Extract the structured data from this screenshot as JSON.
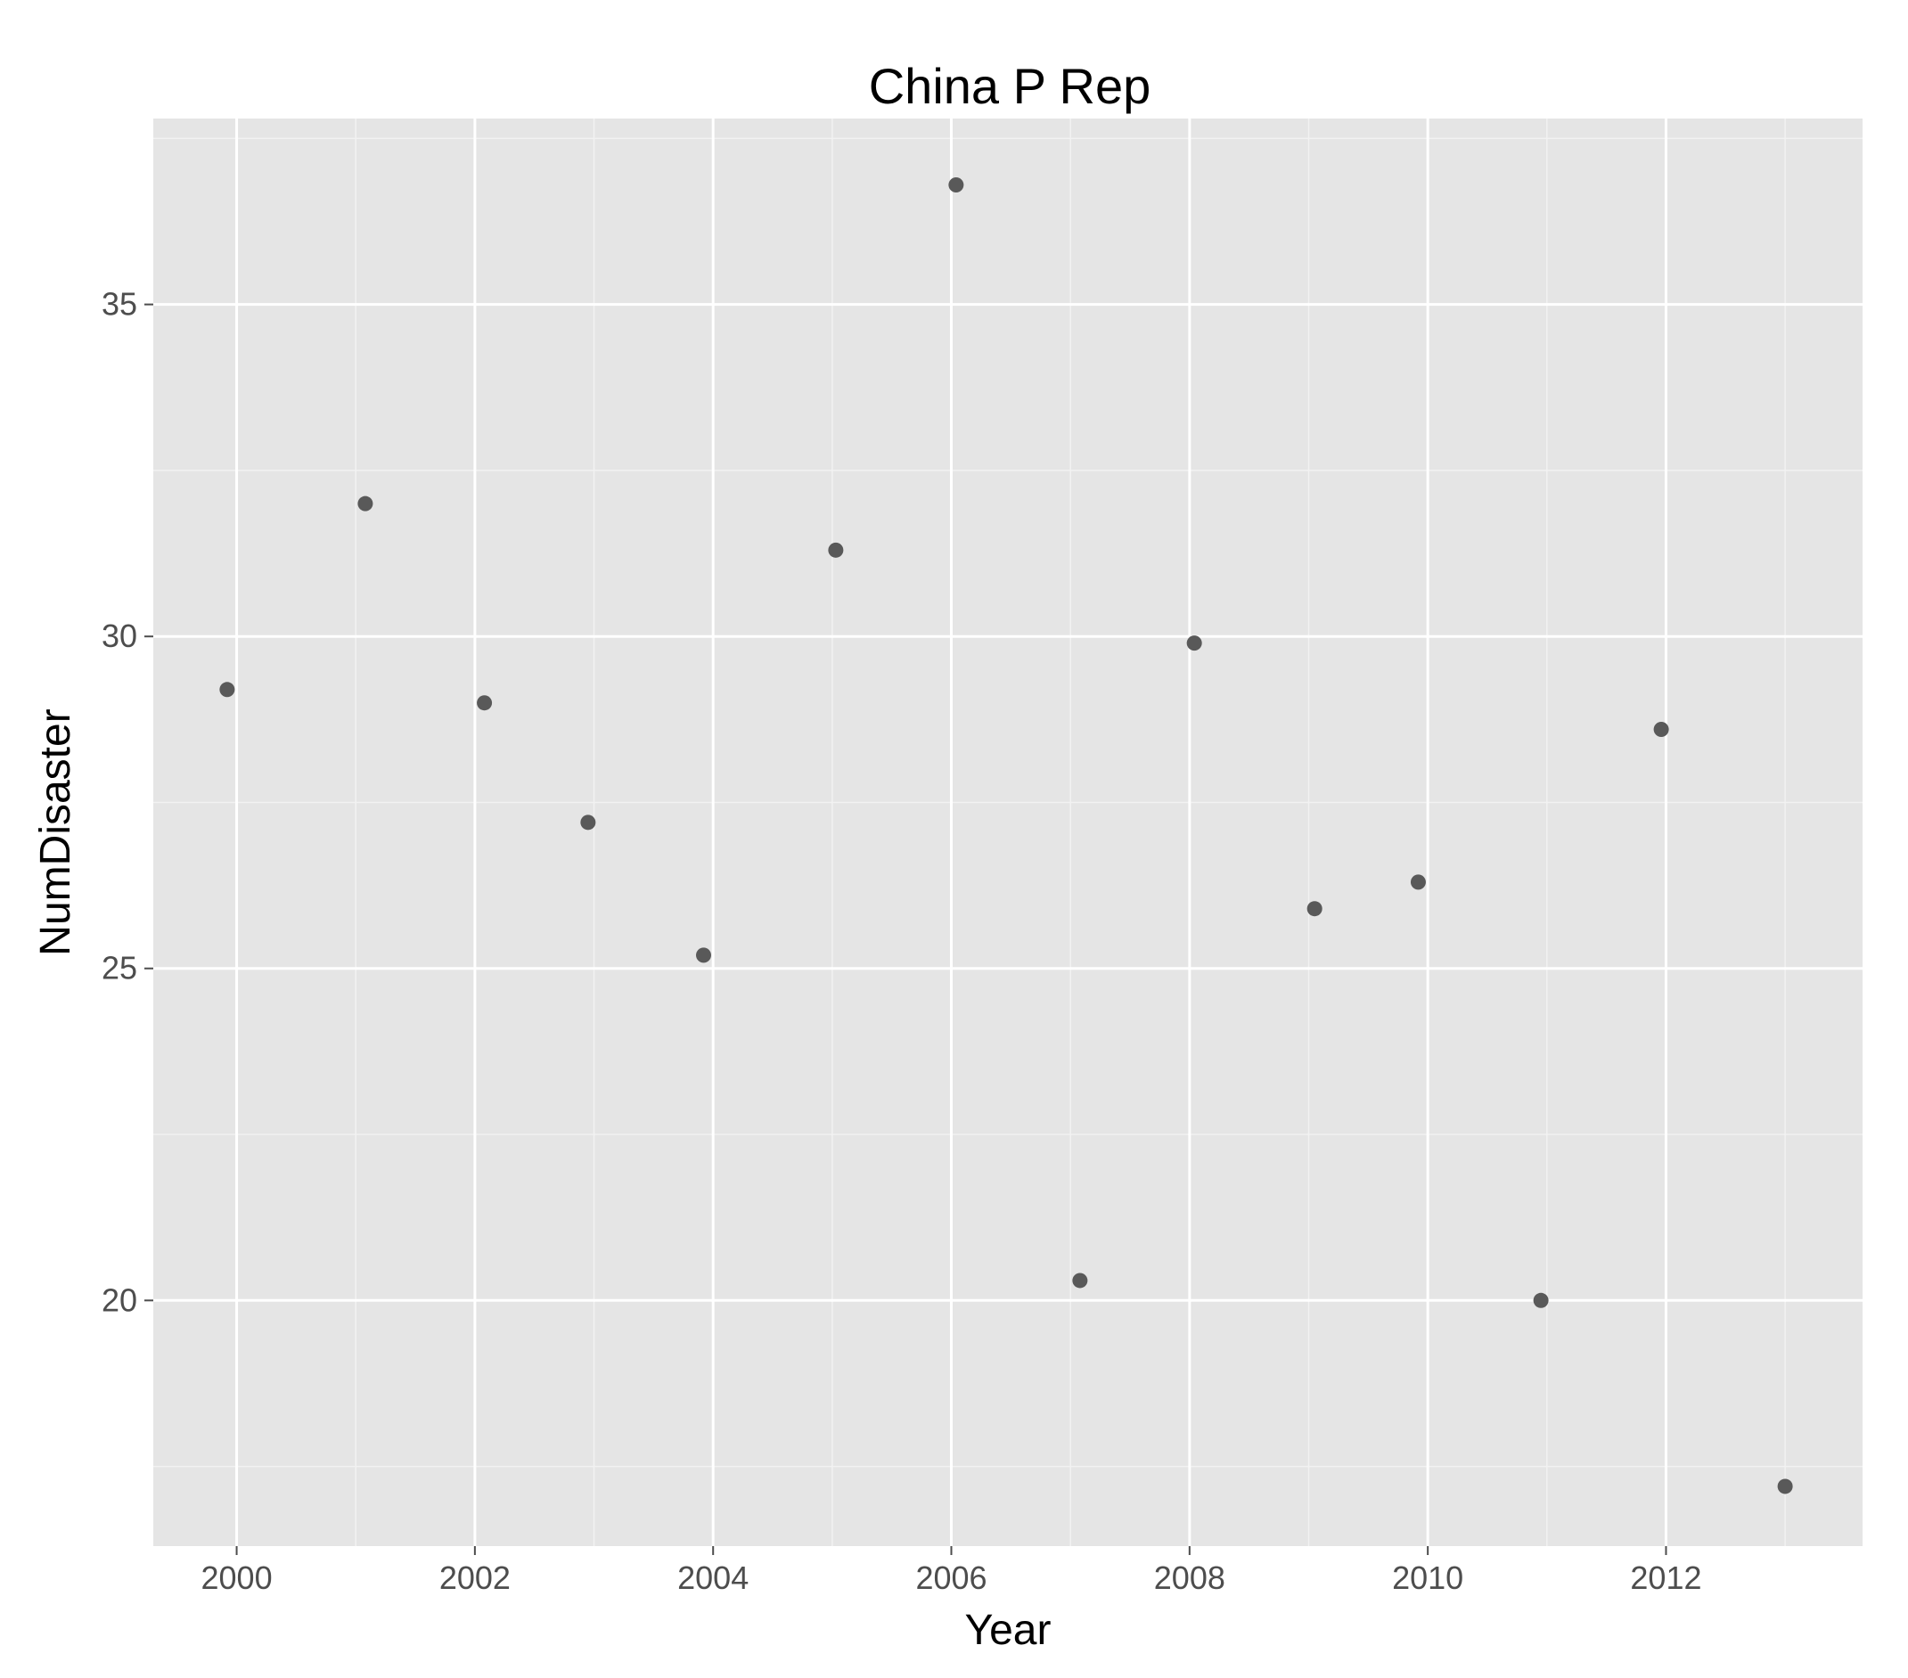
{
  "chart_data": {
    "type": "scatter",
    "title": "China P Rep",
    "xlabel": "Year",
    "ylabel": "NumDisaster",
    "xlim": [
      1999.3,
      2013.65
    ],
    "ylim": [
      16.3,
      37.8
    ],
    "x_ticks": [
      2000,
      2002,
      2004,
      2006,
      2008,
      2010,
      2012
    ],
    "x_tick_labels": [
      "2000",
      "2002",
      "2004",
      "2006",
      "2008",
      "2010",
      "2012"
    ],
    "y_ticks": [
      20,
      25,
      30,
      35
    ],
    "y_tick_labels": [
      "20",
      "25",
      "30",
      "35"
    ],
    "grid": true,
    "point_color": "#595959",
    "panel_color": "#e5e5e5",
    "points": [
      {
        "x": 1999.92,
        "y": 29.2
      },
      {
        "x": 2001.08,
        "y": 32.0
      },
      {
        "x": 2002.08,
        "y": 29.0
      },
      {
        "x": 2002.95,
        "y": 27.2
      },
      {
        "x": 2003.92,
        "y": 25.2
      },
      {
        "x": 2005.03,
        "y": 31.3
      },
      {
        "x": 2006.04,
        "y": 36.8
      },
      {
        "x": 2007.08,
        "y": 20.3
      },
      {
        "x": 2008.04,
        "y": 29.9
      },
      {
        "x": 2009.05,
        "y": 25.9
      },
      {
        "x": 2009.92,
        "y": 26.3
      },
      {
        "x": 2010.95,
        "y": 20.0
      },
      {
        "x": 2011.96,
        "y": 28.6
      },
      {
        "x": 2013.0,
        "y": 17.2
      }
    ]
  }
}
